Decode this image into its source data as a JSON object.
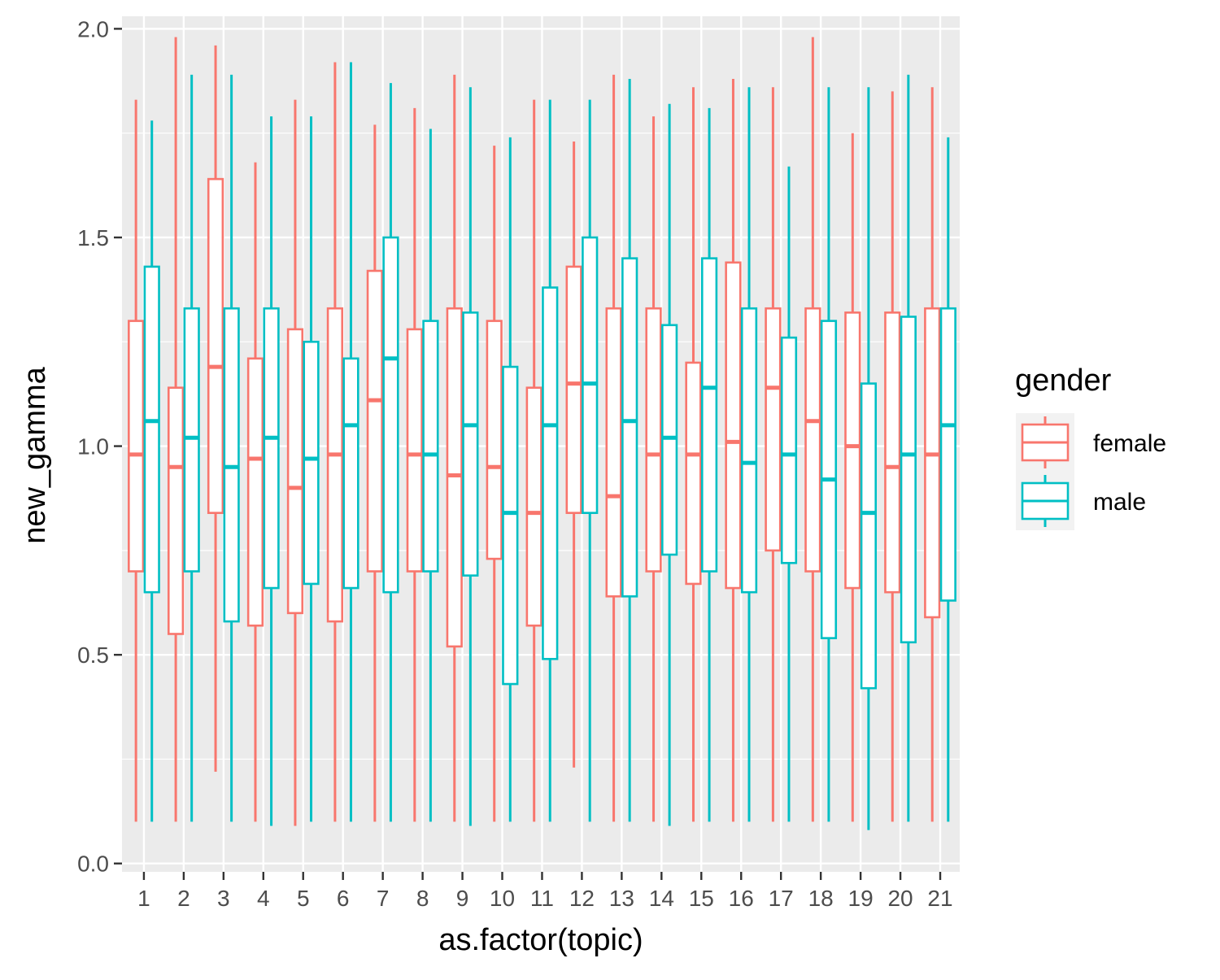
{
  "chart_data": {
    "type": "boxplot",
    "xlabel": "as.factor(topic)",
    "ylabel": "new_gamma",
    "categories": [
      "1",
      "2",
      "3",
      "4",
      "5",
      "6",
      "7",
      "8",
      "9",
      "10",
      "11",
      "12",
      "13",
      "14",
      "15",
      "16",
      "17",
      "18",
      "19",
      "20",
      "21"
    ],
    "ylim": [
      -0.02,
      2.03
    ],
    "y_ticks": [
      0.0,
      0.5,
      1.0,
      1.5,
      2.0
    ],
    "y_tick_labels": [
      "0.0",
      "0.5",
      "1.0",
      "1.5",
      "2.0"
    ],
    "grid": true,
    "legend": {
      "title": "gender",
      "placement": "right",
      "entries": [
        "female",
        "male"
      ]
    },
    "colors": {
      "female": "#F8766D",
      "male": "#00BFC4",
      "panel": "#EBEBEB",
      "grid": "#FFFFFF",
      "axis_text": "#4D4D4D"
    },
    "series": [
      {
        "name": "female",
        "color": "#F8766D",
        "boxes": [
          {
            "min": 0.1,
            "q1": 0.7,
            "median": 0.98,
            "q3": 1.3,
            "max": 1.83
          },
          {
            "min": 0.1,
            "q1": 0.55,
            "median": 0.95,
            "q3": 1.14,
            "max": 1.98
          },
          {
            "min": 0.22,
            "q1": 0.84,
            "median": 1.19,
            "q3": 1.64,
            "max": 1.96
          },
          {
            "min": 0.1,
            "q1": 0.57,
            "median": 0.97,
            "q3": 1.21,
            "max": 1.68
          },
          {
            "min": 0.09,
            "q1": 0.6,
            "median": 0.9,
            "q3": 1.28,
            "max": 1.83
          },
          {
            "min": 0.1,
            "q1": 0.58,
            "median": 0.98,
            "q3": 1.33,
            "max": 1.92
          },
          {
            "min": 0.1,
            "q1": 0.7,
            "median": 1.11,
            "q3": 1.42,
            "max": 1.77
          },
          {
            "min": 0.1,
            "q1": 0.7,
            "median": 0.98,
            "q3": 1.28,
            "max": 1.81
          },
          {
            "min": 0.1,
            "q1": 0.52,
            "median": 0.93,
            "q3": 1.33,
            "max": 1.89
          },
          {
            "min": 0.1,
            "q1": 0.73,
            "median": 0.95,
            "q3": 1.3,
            "max": 1.72
          },
          {
            "min": 0.1,
            "q1": 0.57,
            "median": 0.84,
            "q3": 1.14,
            "max": 1.83
          },
          {
            "min": 0.23,
            "q1": 0.84,
            "median": 1.15,
            "q3": 1.43,
            "max": 1.73
          },
          {
            "min": 0.1,
            "q1": 0.64,
            "median": 0.88,
            "q3": 1.33,
            "max": 1.89
          },
          {
            "min": 0.1,
            "q1": 0.7,
            "median": 0.98,
            "q3": 1.33,
            "max": 1.79
          },
          {
            "min": 0.1,
            "q1": 0.67,
            "median": 0.98,
            "q3": 1.2,
            "max": 1.86
          },
          {
            "min": 0.1,
            "q1": 0.66,
            "median": 1.01,
            "q3": 1.44,
            "max": 1.88
          },
          {
            "min": 0.1,
            "q1": 0.75,
            "median": 1.14,
            "q3": 1.33,
            "max": 1.86
          },
          {
            "min": 0.1,
            "q1": 0.7,
            "median": 1.06,
            "q3": 1.33,
            "max": 1.98
          },
          {
            "min": 0.1,
            "q1": 0.66,
            "median": 1.0,
            "q3": 1.32,
            "max": 1.75
          },
          {
            "min": 0.1,
            "q1": 0.65,
            "median": 0.95,
            "q3": 1.32,
            "max": 1.85
          },
          {
            "min": 0.1,
            "q1": 0.59,
            "median": 0.98,
            "q3": 1.33,
            "max": 1.86
          }
        ]
      },
      {
        "name": "male",
        "color": "#00BFC4",
        "boxes": [
          {
            "min": 0.1,
            "q1": 0.65,
            "median": 1.06,
            "q3": 1.43,
            "max": 1.78
          },
          {
            "min": 0.1,
            "q1": 0.7,
            "median": 1.02,
            "q3": 1.33,
            "max": 1.89
          },
          {
            "min": 0.1,
            "q1": 0.58,
            "median": 0.95,
            "q3": 1.33,
            "max": 1.89
          },
          {
            "min": 0.09,
            "q1": 0.66,
            "median": 1.02,
            "q3": 1.33,
            "max": 1.79
          },
          {
            "min": 0.1,
            "q1": 0.67,
            "median": 0.97,
            "q3": 1.25,
            "max": 1.79
          },
          {
            "min": 0.1,
            "q1": 0.66,
            "median": 1.05,
            "q3": 1.21,
            "max": 1.92
          },
          {
            "min": 0.1,
            "q1": 0.65,
            "median": 1.21,
            "q3": 1.5,
            "max": 1.87
          },
          {
            "min": 0.1,
            "q1": 0.7,
            "median": 0.98,
            "q3": 1.3,
            "max": 1.76
          },
          {
            "min": 0.09,
            "q1": 0.69,
            "median": 1.05,
            "q3": 1.32,
            "max": 1.86
          },
          {
            "min": 0.1,
            "q1": 0.43,
            "median": 0.84,
            "q3": 1.19,
            "max": 1.74
          },
          {
            "min": 0.1,
            "q1": 0.49,
            "median": 1.05,
            "q3": 1.38,
            "max": 1.83
          },
          {
            "min": 0.1,
            "q1": 0.84,
            "median": 1.15,
            "q3": 1.5,
            "max": 1.83
          },
          {
            "min": 0.1,
            "q1": 0.64,
            "median": 1.06,
            "q3": 1.45,
            "max": 1.88
          },
          {
            "min": 0.09,
            "q1": 0.74,
            "median": 1.02,
            "q3": 1.29,
            "max": 1.82
          },
          {
            "min": 0.1,
            "q1": 0.7,
            "median": 1.14,
            "q3": 1.45,
            "max": 1.81
          },
          {
            "min": 0.1,
            "q1": 0.65,
            "median": 0.96,
            "q3": 1.33,
            "max": 1.86
          },
          {
            "min": 0.1,
            "q1": 0.72,
            "median": 0.98,
            "q3": 1.26,
            "max": 1.67
          },
          {
            "min": 0.1,
            "q1": 0.54,
            "median": 0.92,
            "q3": 1.3,
            "max": 1.86
          },
          {
            "min": 0.08,
            "q1": 0.42,
            "median": 0.84,
            "q3": 1.15,
            "max": 1.86
          },
          {
            "min": 0.1,
            "q1": 0.53,
            "median": 0.98,
            "q3": 1.31,
            "max": 1.89
          },
          {
            "min": 0.1,
            "q1": 0.63,
            "median": 1.05,
            "q3": 1.33,
            "max": 1.74
          }
        ]
      }
    ]
  }
}
